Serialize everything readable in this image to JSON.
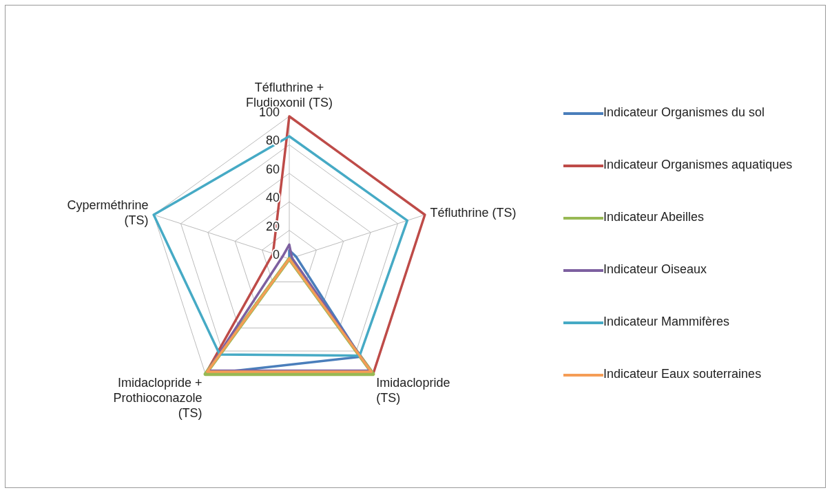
{
  "chart_data": {
    "type": "radar",
    "categories": [
      "Téfluthrine + Fludioxonil (TS)",
      "Téfluthrine (TS)",
      "Imidaclopride (TS)",
      "Imidaclopride + Prothioconazole (TS)",
      "Cyperméthrine (TS)"
    ],
    "ylim": [
      0,
      100
    ],
    "yticks": [
      0,
      20,
      40,
      60,
      80,
      100
    ],
    "grid": true,
    "legend": "right",
    "marker": "none",
    "series": [
      {
        "name": "Indicateur Organismes du sol",
        "color": "#4a7ebb",
        "values": [
          6,
          5,
          85,
          100,
          0
        ]
      },
      {
        "name": "Indicateur Organismes aquatiques",
        "color": "#be4b48",
        "values": [
          100,
          100,
          100,
          100,
          12
        ]
      },
      {
        "name": "Indicateur Abeilles",
        "color": "#98b954",
        "values": [
          0,
          0,
          100,
          100,
          0
        ]
      },
      {
        "name": "Indicateur Oiseaux",
        "color": "#7d60a0",
        "values": [
          10,
          2,
          97,
          97,
          5
        ]
      },
      {
        "name": "Indicateur Mammifères",
        "color": "#46aac5",
        "values": [
          86,
          87,
          84,
          83,
          100
        ]
      },
      {
        "name": "Indicateur Eaux souterraines",
        "color": "#f59d56",
        "values": [
          0,
          0,
          98,
          98,
          0
        ]
      }
    ]
  }
}
